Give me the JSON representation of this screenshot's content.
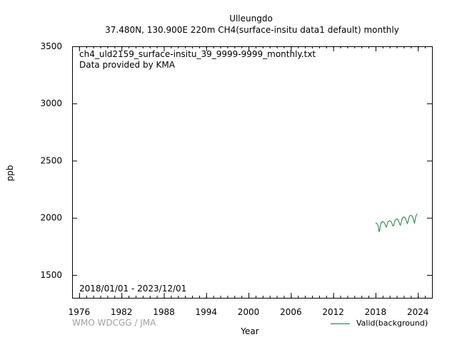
{
  "header": {
    "station": "Ulleungdo",
    "subtitle": "37.480N, 130.900E 220m    CH4(surface-insitu data1 default) monthly"
  },
  "annotations": {
    "filename": "ch4_uld2159_surface-insitu_39_9999-9999_monthly.txt",
    "provider": "Data provided by KMA",
    "period": "2018/01/01 - 2023/12/01"
  },
  "credit": "WMO WDCGG / JMA",
  "legend": {
    "label": "Valid(background)",
    "color": "#1b7a3e"
  },
  "chart_data": {
    "type": "line",
    "xlabel": "Year",
    "ylabel": "ppb",
    "xlim": [
      1975,
      2026
    ],
    "ylim": [
      1300,
      3500
    ],
    "xticks": [
      1976,
      1982,
      1988,
      1994,
      2000,
      2006,
      2012,
      2018,
      2024
    ],
    "yticks": [
      1500,
      2000,
      2500,
      3000,
      3500
    ],
    "grid": false,
    "legend_position": "bottom-right",
    "series": [
      {
        "name": "Valid(background)",
        "color": "#1b7a3e",
        "x": [
          "2018-01",
          "2018-02",
          "2018-03",
          "2018-04",
          "2018-05",
          "2018-06",
          "2018-07",
          "2018-08",
          "2018-09",
          "2018-10",
          "2018-11",
          "2018-12",
          "2019-01",
          "2019-02",
          "2019-03",
          "2019-04",
          "2019-05",
          "2019-06",
          "2019-07",
          "2019-08",
          "2019-09",
          "2019-10",
          "2019-11",
          "2019-12",
          "2020-01",
          "2020-02",
          "2020-03",
          "2020-04",
          "2020-05",
          "2020-06",
          "2020-07",
          "2020-08",
          "2020-09",
          "2020-10",
          "2020-11",
          "2020-12",
          "2021-01",
          "2021-02",
          "2021-03",
          "2021-04",
          "2021-05",
          "2021-06",
          "2021-07",
          "2021-08",
          "2021-09",
          "2021-10",
          "2021-11",
          "2021-12",
          "2022-01",
          "2022-02",
          "2022-03",
          "2022-04",
          "2022-05",
          "2022-06",
          "2022-07",
          "2022-08",
          "2022-09",
          "2022-10",
          "2022-11",
          "2022-12",
          "2023-01",
          "2023-02",
          "2023-03",
          "2023-04",
          "2023-05",
          "2023-06",
          "2023-07",
          "2023-08",
          "2023-09",
          "2023-10",
          "2023-11",
          "2023-12"
        ],
        "values": [
          1955,
          1952,
          1950,
          1946,
          1935,
          1915,
          1880,
          1890,
          1925,
          1950,
          1962,
          1960,
          1968,
          1965,
          1962,
          1955,
          1945,
          1930,
          1918,
          1925,
          1950,
          1965,
          1970,
          1972,
          1975,
          1973,
          1968,
          1962,
          1950,
          1935,
          1928,
          1935,
          1958,
          1975,
          1982,
          1985,
          1990,
          1988,
          1985,
          1975,
          1962,
          1945,
          1935,
          1945,
          1968,
          1988,
          1998,
          2002,
          2008,
          2005,
          2000,
          1992,
          1978,
          1962,
          1950,
          1960,
          1985,
          2005,
          2015,
          2018,
          2022,
          2020,
          2015,
          2008,
          1995,
          1975,
          1955,
          1970,
          2000,
          2020,
          2030,
          2035
        ]
      }
    ]
  }
}
